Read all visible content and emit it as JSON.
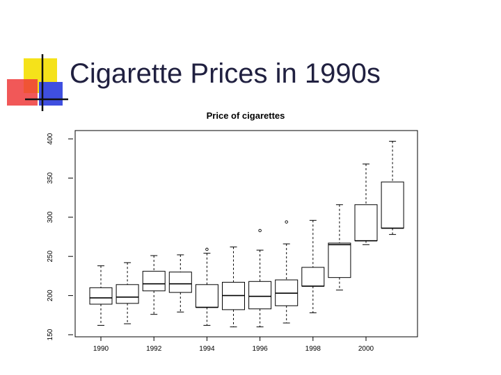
{
  "slide": {
    "title": "Cigarette Prices in 1990s"
  },
  "colors": {
    "logo_yellow": "#f5e21a",
    "logo_red": "#ef3b3b",
    "logo_blue": "#3f4fe0",
    "title_text": "#202040"
  },
  "chart_data": {
    "type": "boxplot",
    "title": "Price of cigarettes",
    "xlabel": "",
    "ylabel": "",
    "ylim": [
      150,
      400
    ],
    "yticks": [
      150,
      200,
      250,
      300,
      350,
      400
    ],
    "x_tick_labels": [
      "1990",
      "1992",
      "1994",
      "1996",
      "1998",
      "2000"
    ],
    "x_tick_years": [
      1990,
      1992,
      1994,
      1996,
      1998,
      2000
    ],
    "grid": false,
    "boxes": [
      {
        "year": 1990,
        "whisker_low": 162,
        "q1": 189,
        "median": 197,
        "q3": 210,
        "whisker_high": 238,
        "outliers": []
      },
      {
        "year": 1991,
        "whisker_low": 164,
        "q1": 190,
        "median": 198,
        "q3": 214,
        "whisker_high": 242,
        "outliers": []
      },
      {
        "year": 1992,
        "whisker_low": 176,
        "q1": 206,
        "median": 215,
        "q3": 231,
        "whisker_high": 251,
        "outliers": []
      },
      {
        "year": 1993,
        "whisker_low": 179,
        "q1": 204,
        "median": 215,
        "q3": 230,
        "whisker_high": 252,
        "outliers": []
      },
      {
        "year": 1994,
        "whisker_low": 162,
        "q1": 185,
        "median": 185,
        "q3": 214,
        "whisker_high": 254,
        "outliers": [
          259
        ]
      },
      {
        "year": 1995,
        "whisker_low": 160,
        "q1": 182,
        "median": 200,
        "q3": 217,
        "whisker_high": 262,
        "outliers": []
      },
      {
        "year": 1996,
        "whisker_low": 160,
        "q1": 183,
        "median": 199,
        "q3": 218,
        "whisker_high": 258,
        "outliers": [
          283
        ]
      },
      {
        "year": 1997,
        "whisker_low": 165,
        "q1": 187,
        "median": 203,
        "q3": 220,
        "whisker_high": 266,
        "outliers": [
          294
        ]
      },
      {
        "year": 1998,
        "whisker_low": 178,
        "q1": 212,
        "median": 212,
        "q3": 236,
        "whisker_high": 296,
        "outliers": []
      },
      {
        "year": 1999,
        "whisker_low": 207,
        "q1": 223,
        "median": 265,
        "q3": 267,
        "whisker_high": 316,
        "outliers": []
      },
      {
        "year": 2000,
        "whisker_low": 265,
        "q1": 270,
        "median": 270,
        "q3": 316,
        "whisker_high": 368,
        "outliers": []
      },
      {
        "year": 2001,
        "whisker_low": 278,
        "q1": 286,
        "median": 286,
        "q3": 345,
        "whisker_high": 397,
        "outliers": []
      }
    ]
  }
}
